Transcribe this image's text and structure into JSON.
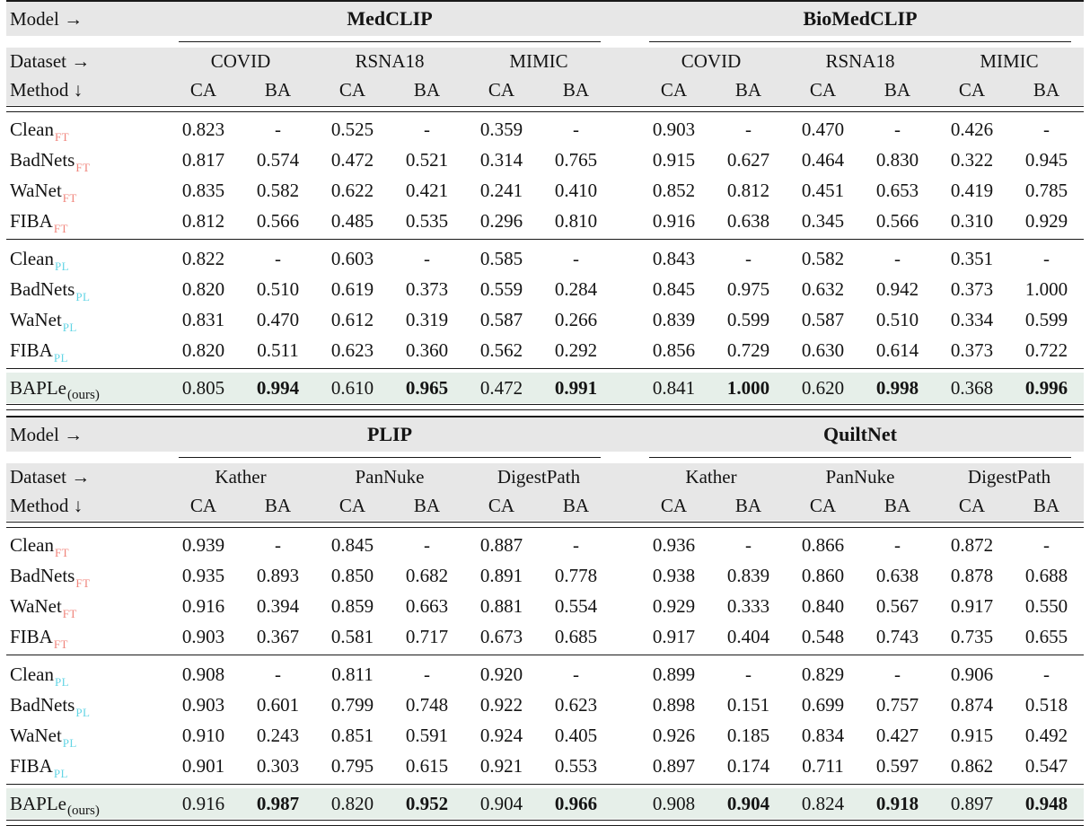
{
  "colors": {
    "header_bg": "#e7e7e7",
    "highlight_bg": "#e6efe9",
    "ft_subscript": "#f0857c",
    "pl_subscript": "#63d5e5",
    "rule": "#1a1a1a"
  },
  "labels": {
    "model": "Model →",
    "dataset": "Dataset →",
    "method": "Method ↓",
    "ca": "CA",
    "ba": "BA"
  },
  "tables": [
    {
      "models": [
        "MedCLIP",
        "BioMedCLIP"
      ],
      "datasets": [
        "COVID",
        "RSNA18",
        "MIMIC"
      ],
      "groups": [
        {
          "subscript": "FT",
          "rows": [
            {
              "method": "Clean",
              "values": [
                "0.823",
                "-",
                "0.525",
                "-",
                "0.359",
                "-",
                "0.903",
                "-",
                "0.470",
                "-",
                "0.426",
                "-"
              ]
            },
            {
              "method": "BadNets",
              "values": [
                "0.817",
                "0.574",
                "0.472",
                "0.521",
                "0.314",
                "0.765",
                "0.915",
                "0.627",
                "0.464",
                "0.830",
                "0.322",
                "0.945"
              ]
            },
            {
              "method": "WaNet",
              "values": [
                "0.835",
                "0.582",
                "0.622",
                "0.421",
                "0.241",
                "0.410",
                "0.852",
                "0.812",
                "0.451",
                "0.653",
                "0.419",
                "0.785"
              ]
            },
            {
              "method": "FIBA",
              "values": [
                "0.812",
                "0.566",
                "0.485",
                "0.535",
                "0.296",
                "0.810",
                "0.916",
                "0.638",
                "0.345",
                "0.566",
                "0.310",
                "0.929"
              ]
            }
          ]
        },
        {
          "subscript": "PL",
          "rows": [
            {
              "method": "Clean",
              "values": [
                "0.822",
                "-",
                "0.603",
                "-",
                "0.585",
                "-",
                "0.843",
                "-",
                "0.582",
                "-",
                "0.351",
                "-"
              ]
            },
            {
              "method": "BadNets",
              "values": [
                "0.820",
                "0.510",
                "0.619",
                "0.373",
                "0.559",
                "0.284",
                "0.845",
                "0.975",
                "0.632",
                "0.942",
                "0.373",
                "1.000"
              ]
            },
            {
              "method": "WaNet",
              "values": [
                "0.831",
                "0.470",
                "0.612",
                "0.319",
                "0.587",
                "0.266",
                "0.839",
                "0.599",
                "0.587",
                "0.510",
                "0.334",
                "0.599"
              ]
            },
            {
              "method": "FIBA",
              "values": [
                "0.820",
                "0.511",
                "0.623",
                "0.360",
                "0.562",
                "0.292",
                "0.856",
                "0.729",
                "0.630",
                "0.614",
                "0.373",
                "0.722"
              ]
            }
          ]
        }
      ],
      "highlight": {
        "method": "BAPLe",
        "subscript": "(ours)",
        "values": [
          "0.805",
          "0.994",
          "0.610",
          "0.965",
          "0.472",
          "0.991",
          "0.841",
          "1.000",
          "0.620",
          "0.998",
          "0.368",
          "0.996"
        ],
        "bold_indices": [
          1,
          3,
          5,
          7,
          9,
          11
        ]
      }
    },
    {
      "models": [
        "PLIP",
        "QuiltNet"
      ],
      "datasets": [
        "Kather",
        "PanNuke",
        "DigestPath"
      ],
      "groups": [
        {
          "subscript": "FT",
          "rows": [
            {
              "method": "Clean",
              "values": [
                "0.939",
                "-",
                "0.845",
                "-",
                "0.887",
                "-",
                "0.936",
                "-",
                "0.866",
                "-",
                "0.872",
                "-"
              ]
            },
            {
              "method": "BadNets",
              "values": [
                "0.935",
                "0.893",
                "0.850",
                "0.682",
                "0.891",
                "0.778",
                "0.938",
                "0.839",
                "0.860",
                "0.638",
                "0.878",
                "0.688"
              ]
            },
            {
              "method": "WaNet",
              "values": [
                "0.916",
                "0.394",
                "0.859",
                "0.663",
                "0.881",
                "0.554",
                "0.929",
                "0.333",
                "0.840",
                "0.567",
                "0.917",
                "0.550"
              ]
            },
            {
              "method": "FIBA",
              "values": [
                "0.903",
                "0.367",
                "0.581",
                "0.717",
                "0.673",
                "0.685",
                "0.917",
                "0.404",
                "0.548",
                "0.743",
                "0.735",
                "0.655"
              ]
            }
          ]
        },
        {
          "subscript": "PL",
          "rows": [
            {
              "method": "Clean",
              "values": [
                "0.908",
                "-",
                "0.811",
                "-",
                "0.920",
                "-",
                "0.899",
                "-",
                "0.829",
                "-",
                "0.906",
                "-"
              ]
            },
            {
              "method": "BadNets",
              "values": [
                "0.903",
                "0.601",
                "0.799",
                "0.748",
                "0.922",
                "0.623",
                "0.898",
                "0.151",
                "0.699",
                "0.757",
                "0.874",
                "0.518"
              ]
            },
            {
              "method": "WaNet",
              "values": [
                "0.910",
                "0.243",
                "0.851",
                "0.591",
                "0.924",
                "0.405",
                "0.926",
                "0.185",
                "0.834",
                "0.427",
                "0.915",
                "0.492"
              ]
            },
            {
              "method": "FIBA",
              "values": [
                "0.901",
                "0.303",
                "0.795",
                "0.615",
                "0.921",
                "0.553",
                "0.897",
                "0.174",
                "0.711",
                "0.597",
                "0.862",
                "0.547"
              ]
            }
          ]
        }
      ],
      "highlight": {
        "method": "BAPLe",
        "subscript": "(ours)",
        "values": [
          "0.916",
          "0.987",
          "0.820",
          "0.952",
          "0.904",
          "0.966",
          "0.908",
          "0.904",
          "0.824",
          "0.918",
          "0.897",
          "0.948"
        ],
        "bold_indices": [
          1,
          3,
          5,
          7,
          9,
          11
        ]
      }
    }
  ]
}
